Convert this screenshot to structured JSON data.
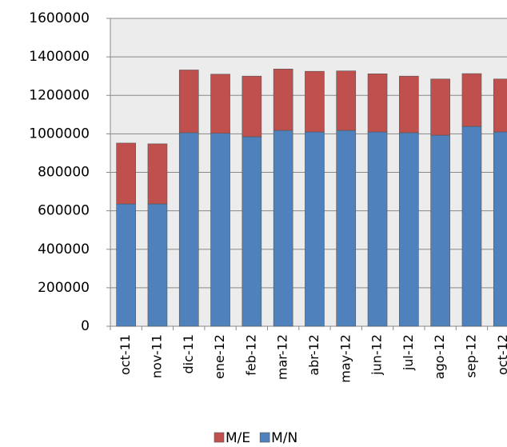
{
  "chart_data": {
    "type": "stacked_bar",
    "categories": [
      "oct-11",
      "nov-11",
      "dic-11",
      "ene-12",
      "feb-12",
      "mar-12",
      "abr-12",
      "may-12",
      "jun-12",
      "jul-12",
      "ago-12",
      "sep-12",
      "oct-12"
    ],
    "series": [
      {
        "name": "M/E",
        "color": "#c0504d",
        "values": [
          316000,
          312000,
          326000,
          307000,
          315000,
          319000,
          315000,
          309000,
          302000,
          294000,
          292000,
          274000,
          275000
        ]
      },
      {
        "name": "M/N",
        "color": "#4f81bd",
        "values": [
          636000,
          636000,
          1006000,
          1003000,
          985000,
          1018000,
          1010000,
          1018000,
          1010000,
          1006000,
          993000,
          1039000,
          1010000
        ]
      }
    ],
    "ylim": [
      0,
      1600000
    ],
    "yticks": [
      0,
      200000,
      400000,
      600000,
      800000,
      1000000,
      1200000,
      1400000,
      1600000
    ],
    "grid": true,
    "legend": "bottom"
  }
}
